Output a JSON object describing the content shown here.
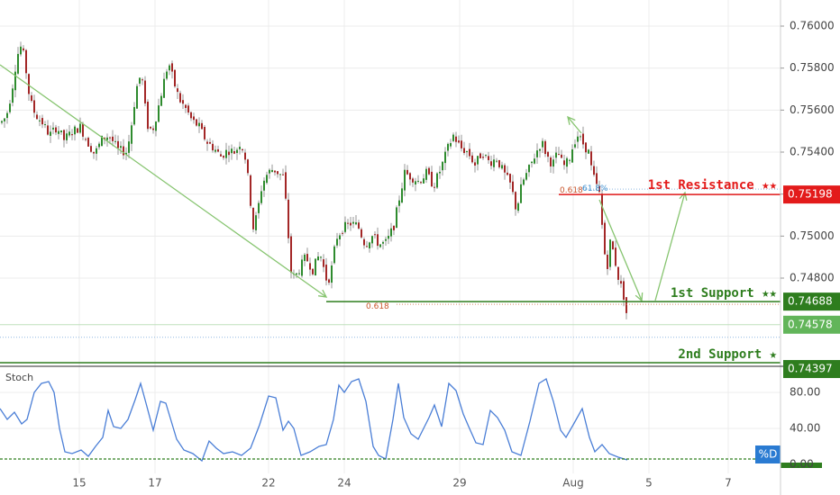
{
  "chart_data": [
    {
      "type": "candlestick",
      "price_axis": {
        "ticks": [
          "0.76000",
          "0.75800",
          "0.75600",
          "0.75400",
          "0.75200",
          "0.75000",
          "0.74800"
        ],
        "tick_values": [
          0.76,
          0.758,
          0.756,
          0.754,
          0.752,
          0.75,
          0.748
        ],
        "range": [
          0.7433,
          0.7616
        ]
      },
      "x_axis": {
        "labels": [
          "15",
          "17",
          "22",
          "24",
          "29",
          "Aug",
          "5",
          "7"
        ]
      },
      "close_series": [
        [
          0,
          0.7554
        ],
        [
          6,
          0.7557
        ],
        [
          12,
          0.7569
        ],
        [
          18,
          0.7586
        ],
        [
          22,
          0.759
        ],
        [
          26,
          0.7585
        ],
        [
          32,
          0.7565
        ],
        [
          38,
          0.7558
        ],
        [
          46,
          0.7554
        ],
        [
          54,
          0.7548
        ],
        [
          62,
          0.7552
        ],
        [
          70,
          0.7546
        ],
        [
          80,
          0.755
        ],
        [
          88,
          0.7552
        ],
        [
          96,
          0.7545
        ],
        [
          104,
          0.7539
        ],
        [
          112,
          0.7546
        ],
        [
          120,
          0.7548
        ],
        [
          130,
          0.7541
        ],
        [
          140,
          0.754
        ],
        [
          146,
          0.7556
        ],
        [
          150,
          0.757
        ],
        [
          156,
          0.7578
        ],
        [
          162,
          0.7553
        ],
        [
          168,
          0.755
        ],
        [
          174,
          0.756
        ],
        [
          180,
          0.7572
        ],
        [
          186,
          0.7583
        ],
        [
          192,
          0.7573
        ],
        [
          198,
          0.7565
        ],
        [
          206,
          0.756
        ],
        [
          212,
          0.7555
        ],
        [
          220,
          0.7552
        ],
        [
          228,
          0.7545
        ],
        [
          236,
          0.7542
        ],
        [
          244,
          0.7538
        ],
        [
          252,
          0.7541
        ],
        [
          260,
          0.754
        ],
        [
          266,
          0.7545
        ],
        [
          272,
          0.7536
        ],
        [
          276,
          0.752
        ],
        [
          280,
          0.7504
        ],
        [
          284,
          0.751
        ],
        [
          290,
          0.7525
        ],
        [
          296,
          0.753
        ],
        [
          302,
          0.7532
        ],
        [
          308,
          0.753
        ],
        [
          314,
          0.7528
        ],
        [
          318,
          0.7505
        ],
        [
          322,
          0.7483
        ],
        [
          326,
          0.748
        ],
        [
          332,
          0.7485
        ],
        [
          338,
          0.749
        ],
        [
          346,
          0.7484
        ],
        [
          354,
          0.7492
        ],
        [
          362,
          0.7478
        ],
        [
          366,
          0.7482
        ],
        [
          372,
          0.7499
        ],
        [
          380,
          0.7504
        ],
        [
          388,
          0.7506
        ],
        [
          396,
          0.7505
        ],
        [
          404,
          0.7496
        ],
        [
          412,
          0.75
        ],
        [
          420,
          0.7496
        ],
        [
          428,
          0.7497
        ],
        [
          436,
          0.7505
        ],
        [
          442,
          0.7518
        ],
        [
          448,
          0.753
        ],
        [
          456,
          0.7528
        ],
        [
          464,
          0.7526
        ],
        [
          472,
          0.753
        ],
        [
          480,
          0.7524
        ],
        [
          488,
          0.7532
        ],
        [
          496,
          0.7542
        ],
        [
          502,
          0.7548
        ],
        [
          510,
          0.7542
        ],
        [
          518,
          0.754
        ],
        [
          526,
          0.7534
        ],
        [
          534,
          0.754
        ],
        [
          542,
          0.7535
        ],
        [
          550,
          0.7537
        ],
        [
          558,
          0.753
        ],
        [
          566,
          0.7524
        ],
        [
          572,
          0.7512
        ],
        [
          578,
          0.7525
        ],
        [
          586,
          0.7532
        ],
        [
          594,
          0.754
        ],
        [
          600,
          0.7545
        ],
        [
          606,
          0.7538
        ],
        [
          612,
          0.7534
        ],
        [
          618,
          0.754
        ],
        [
          624,
          0.7533
        ],
        [
          630,
          0.7536
        ],
        [
          636,
          0.7545
        ],
        [
          640,
          0.7548
        ],
        [
          646,
          0.7544
        ],
        [
          652,
          0.754
        ],
        [
          656,
          0.753
        ],
        [
          660,
          0.7525
        ],
        [
          664,
          0.752
        ],
        [
          668,
          0.75
        ],
        [
          672,
          0.7483
        ],
        [
          676,
          0.7497
        ],
        [
          680,
          0.7492
        ],
        [
          684,
          0.7482
        ],
        [
          688,
          0.7476
        ],
        [
          692,
          0.747
        ],
        [
          696,
          0.7457
        ]
      ],
      "horizontal_lines": [
        {
          "label": "1st Resistance ★★",
          "value": 0.75198,
          "value_label": "0.75198",
          "color": "#e31b1b"
        },
        {
          "label": "1st Support ★★",
          "value": 0.74688,
          "value_label": "0.74688",
          "color": "#2e7d1e"
        },
        {
          "label": "2nd Support ★",
          "value": 0.74397,
          "value_label": "0.74397",
          "color": "#2e7d1e"
        }
      ],
      "current_price": {
        "value": 0.74578,
        "label": "0.74578",
        "color": "#62b55a"
      },
      "fib_annotations": [
        {
          "text": "0.618",
          "color": "#c9552b",
          "anchor": "support"
        },
        {
          "text": "0.618",
          "color": "#c9552b",
          "anchor": "resistance"
        },
        {
          "text": "61.8%",
          "color": "#3f8fcf",
          "anchor": "resistance"
        }
      ],
      "colors": {
        "bull": "#2e8b2e",
        "bear": "#a32727",
        "trend_arrow": "#86c46f",
        "grid": "#ececec"
      }
    },
    {
      "type": "line",
      "title": "Stoch",
      "y_axis": {
        "ticks": [
          "80.00",
          "40.00",
          "0.00"
        ],
        "tick_values": [
          80,
          40,
          0
        ],
        "range": [
          -4,
          102
        ]
      },
      "series": [
        {
          "name": "%D",
          "color": "#4a7ed6",
          "points": [
            [
              0,
              62
            ],
            [
              8,
              50
            ],
            [
              16,
              58
            ],
            [
              24,
              45
            ],
            [
              30,
              50
            ],
            [
              38,
              80
            ],
            [
              46,
              90
            ],
            [
              54,
              92
            ],
            [
              60,
              80
            ],
            [
              66,
              40
            ],
            [
              72,
              14
            ],
            [
              80,
              12
            ],
            [
              90,
              16
            ],
            [
              98,
              9
            ],
            [
              106,
              20
            ],
            [
              114,
              30
            ],
            [
              120,
              60
            ],
            [
              126,
              42
            ],
            [
              134,
              40
            ],
            [
              142,
              50
            ],
            [
              150,
              72
            ],
            [
              156,
              90
            ],
            [
              162,
              68
            ],
            [
              170,
              38
            ],
            [
              178,
              70
            ],
            [
              184,
              68
            ],
            [
              190,
              48
            ],
            [
              196,
              28
            ],
            [
              204,
              16
            ],
            [
              214,
              12
            ],
            [
              224,
              4
            ],
            [
              232,
              26
            ],
            [
              240,
              18
            ],
            [
              248,
              12
            ],
            [
              258,
              14
            ],
            [
              268,
              10
            ],
            [
              278,
              18
            ],
            [
              288,
              44
            ],
            [
              298,
              76
            ],
            [
              306,
              74
            ],
            [
              314,
              38
            ],
            [
              320,
              48
            ],
            [
              326,
              40
            ],
            [
              334,
              10
            ],
            [
              344,
              14
            ],
            [
              354,
              20
            ],
            [
              362,
              22
            ],
            [
              370,
              50
            ],
            [
              376,
              88
            ],
            [
              382,
              80
            ],
            [
              390,
              92
            ],
            [
              398,
              95
            ],
            [
              406,
              70
            ],
            [
              414,
              20
            ],
            [
              420,
              10
            ],
            [
              428,
              6
            ],
            [
              436,
              50
            ],
            [
              442,
              90
            ],
            [
              448,
              52
            ],
            [
              456,
              34
            ],
            [
              464,
              28
            ],
            [
              470,
              40
            ],
            [
              476,
              52
            ],
            [
              482,
              66
            ],
            [
              490,
              42
            ],
            [
              498,
              90
            ],
            [
              506,
              82
            ],
            [
              514,
              56
            ],
            [
              520,
              42
            ],
            [
              528,
              24
            ],
            [
              536,
              22
            ],
            [
              544,
              60
            ],
            [
              552,
              52
            ],
            [
              560,
              38
            ],
            [
              568,
              14
            ],
            [
              578,
              10
            ],
            [
              588,
              48
            ],
            [
              598,
              90
            ],
            [
              606,
              95
            ],
            [
              614,
              70
            ],
            [
              622,
              38
            ],
            [
              628,
              30
            ],
            [
              636,
              44
            ],
            [
              646,
              62
            ],
            [
              654,
              30
            ],
            [
              660,
              14
            ],
            [
              668,
              22
            ],
            [
              676,
              12
            ],
            [
              686,
              8
            ],
            [
              696,
              5
            ]
          ]
        }
      ],
      "series_label": "%D",
      "level_line": 0
    }
  ]
}
